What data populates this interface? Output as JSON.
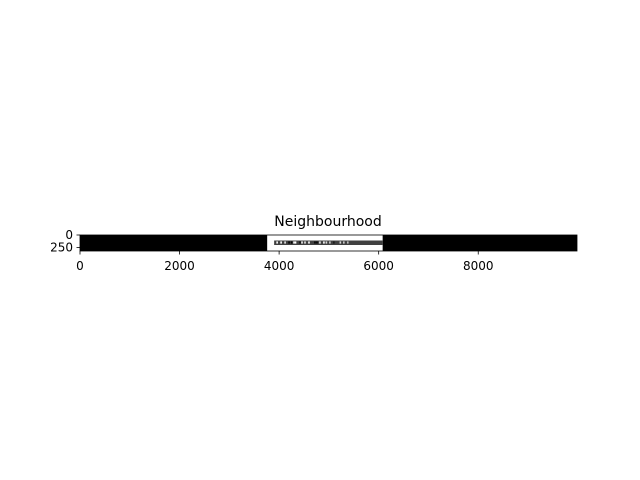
{
  "chart_data": {
    "type": "heatmap",
    "title": "Neighbourhood",
    "xlabel": "",
    "ylabel": "",
    "colormap": "gray",
    "xlim": [
      0,
      9984
    ],
    "ylim": [
      0,
      320
    ],
    "x_ticks": [
      0,
      2000,
      4000,
      6000,
      8000
    ],
    "y_ticks": [
      0,
      250
    ],
    "grid": false,
    "regions": [
      {
        "name": "background",
        "x": [
          0,
          9984
        ],
        "y": [
          0,
          320
        ],
        "value": 0.0
      },
      {
        "name": "patch",
        "x": [
          3760,
          6080
        ],
        "y": [
          0,
          320
        ],
        "value": 1.0
      },
      {
        "name": "band",
        "x": [
          3900,
          6080
        ],
        "y": [
          110,
          200
        ],
        "value": 0.25
      }
    ],
    "bright_pixels": [
      {
        "x": 3960,
        "y": 150,
        "value": 1.0
      },
      {
        "x": 4040,
        "y": 150,
        "value": 1.0
      },
      {
        "x": 4120,
        "y": 150,
        "value": 0.9
      },
      {
        "x": 4300,
        "y": 150,
        "value": 1.0
      },
      {
        "x": 4330,
        "y": 150,
        "value": 1.0
      },
      {
        "x": 4460,
        "y": 150,
        "value": 0.95
      },
      {
        "x": 4520,
        "y": 150,
        "value": 0.9
      },
      {
        "x": 4600,
        "y": 150,
        "value": 1.0
      },
      {
        "x": 4820,
        "y": 150,
        "value": 0.9
      },
      {
        "x": 4900,
        "y": 150,
        "value": 1.0
      },
      {
        "x": 4950,
        "y": 150,
        "value": 0.85
      },
      {
        "x": 5020,
        "y": 150,
        "value": 0.8
      },
      {
        "x": 5230,
        "y": 150,
        "value": 0.85
      },
      {
        "x": 5300,
        "y": 150,
        "value": 0.8
      },
      {
        "x": 5380,
        "y": 150,
        "value": 0.75
      }
    ],
    "dark_pixels": [
      {
        "x": 4200,
        "y": 150,
        "value": 0.0
      },
      {
        "x": 4250,
        "y": 150,
        "value": 0.0
      },
      {
        "x": 4420,
        "y": 150,
        "value": 0.05
      },
      {
        "x": 4720,
        "y": 150,
        "value": 0.0
      },
      {
        "x": 4760,
        "y": 150,
        "value": 0.0
      },
      {
        "x": 5100,
        "y": 150,
        "value": 0.1
      }
    ]
  }
}
